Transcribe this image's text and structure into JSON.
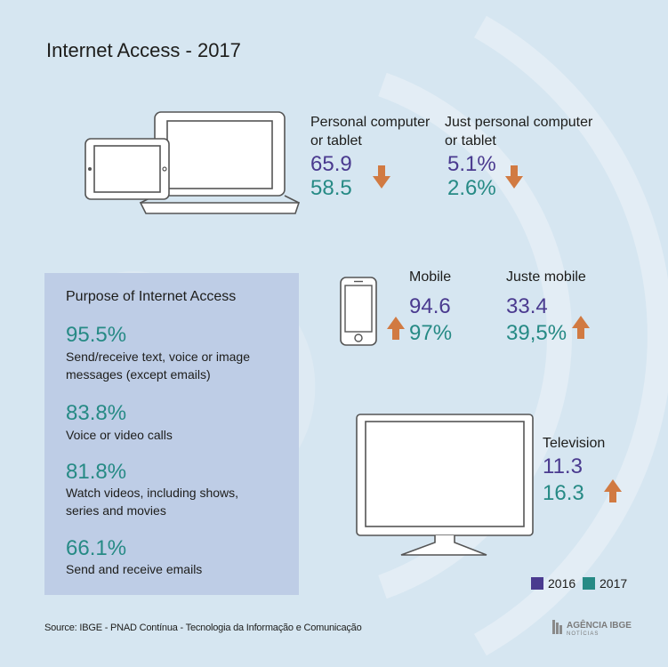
{
  "title": "Internet Access - 2017",
  "colors": {
    "year_2016": "#4a3a8f",
    "year_2017": "#268a85",
    "arrow": "#d17a42",
    "background": "#d6e6f1",
    "panel": "#becde6"
  },
  "computer": {
    "pc_label_1": "Personal computer",
    "pc_label_2": "or tablet",
    "pc_2016": "65.9",
    "pc_2017": "58.5",
    "pc_trend": "down",
    "just_pc_label_1": "Just personal computer",
    "just_pc_label_2": "or tablet",
    "just_pc_2016": "5.1%",
    "just_pc_2017": "2.6%",
    "just_pc_trend": "down"
  },
  "mobile": {
    "label": "Mobile",
    "v2016": "94.6",
    "v2017": "97%",
    "trend": "up",
    "just_label": "Juste mobile",
    "just_2016": "33.4",
    "just_2017": "39,5%",
    "just_trend": "up"
  },
  "television": {
    "label": "Television",
    "v2016": "11.3",
    "v2017": "16.3",
    "trend": "up"
  },
  "purpose": {
    "heading": "Purpose of Internet Access",
    "items": [
      {
        "value": "95.5%",
        "desc_1": "Send/receive text, voice or image",
        "desc_2": "messages (except emails)"
      },
      {
        "value": "83.8%",
        "desc_1": "Voice or video calls",
        "desc_2": ""
      },
      {
        "value": "81.8%",
        "desc_1": "Watch videos, including shows,",
        "desc_2": "series and movies"
      },
      {
        "value": "66.1%",
        "desc_1": "Send and receive emails",
        "desc_2": ""
      }
    ]
  },
  "legend": {
    "y2016": "2016",
    "y2017": "2017"
  },
  "source": "Source: IBGE - PNAD Contínua - Tecnologia da Informação e Comunicação",
  "logo": {
    "name": "AGÊNCIA IBGE",
    "sub": "NOTÍCIAS"
  }
}
